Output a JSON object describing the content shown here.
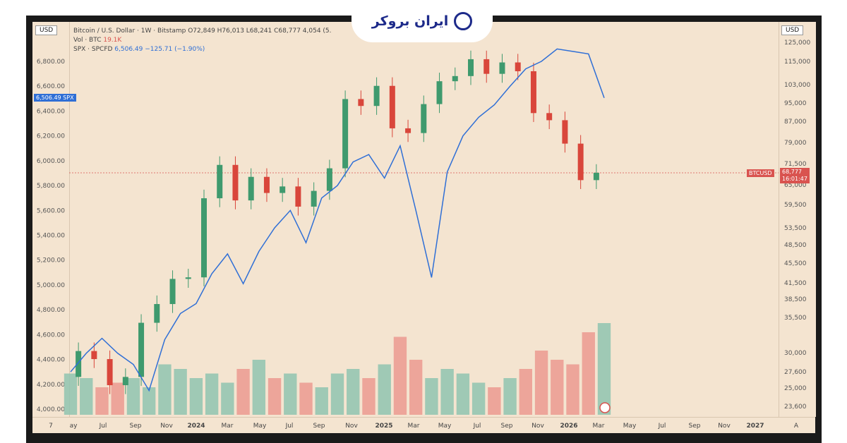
{
  "header": {
    "currency_left": "USD",
    "currency_right": "USD",
    "line1": "Bitcoin / U.S. Dollar · 1W · Bitstamp  O72,849  H76,013  L68,241  C68,777   4,054  (",
    "line2_prefix": "Vol · BTC ",
    "line2_value": "19.1K",
    "line3_prefix": "SPX · SPCFD  ",
    "line3_value": "6,506.49  −125.71 (−1.90%)",
    "truncated": "5.",
    "spx_tag_value": "6,506.49",
    "spx_tag_label": "SPX",
    "btc_tag_label": "BTCUSD",
    "btc_tag_price": "68,777",
    "btc_tag_time": "16:01:47",
    "brand_text": "ایران بروکر"
  },
  "chart_data": {
    "type": "candlestick+line+volume",
    "left_axis_ticks": [
      "6,800.00",
      "6,600.00",
      "6,400.00",
      "6,200.00",
      "6,000.00",
      "5,800.00",
      "5,600.00",
      "5,400.00",
      "5,200.00",
      "5,000.00",
      "4,800.00",
      "4,600.00",
      "4,400.00",
      "4,200.00",
      "4,000.00"
    ],
    "left_axis_values": [
      6800,
      6600,
      6400,
      6200,
      6000,
      5800,
      5600,
      5400,
      5200,
      5000,
      4800,
      4600,
      4400,
      4200,
      4000
    ],
    "right_axis_ticks": [
      "125,000",
      "115,000",
      "103,000",
      "95,000",
      "87,000",
      "79,000",
      "71,500",
      "65,000",
      "59,500",
      "53,500",
      "48,500",
      "45,500",
      "41,500",
      "38,500",
      "35,500",
      "30,000",
      "27,600",
      "25,000",
      "23,600"
    ],
    "x_ticks": [
      "7",
      "ay",
      "Jul",
      "Sep",
      "Nov",
      "2024",
      "Mar",
      "May",
      "Jul",
      "Sep",
      "Nov",
      "2025",
      "Mar",
      "May",
      "Jul",
      "Sep",
      "Nov",
      "2026",
      "Mar",
      "May",
      "Jul",
      "Sep",
      "Nov",
      "2027",
      "A"
    ],
    "spx_series": [
      {
        "t": "2023-05",
        "v": 4300
      },
      {
        "t": "2023-06",
        "v": 4450
      },
      {
        "t": "2023-07",
        "v": 4570
      },
      {
        "t": "2023-08",
        "v": 4450
      },
      {
        "t": "2023-09",
        "v": 4360
      },
      {
        "t": "2023-10",
        "v": 4150
      },
      {
        "t": "2023-11",
        "v": 4560
      },
      {
        "t": "2023-12",
        "v": 4770
      },
      {
        "t": "2024-01",
        "v": 4850
      },
      {
        "t": "2024-02",
        "v": 5090
      },
      {
        "t": "2024-03",
        "v": 5250
      },
      {
        "t": "2024-04",
        "v": 5010
      },
      {
        "t": "2024-05",
        "v": 5270
      },
      {
        "t": "2024-06",
        "v": 5460
      },
      {
        "t": "2024-07",
        "v": 5600
      },
      {
        "t": "2024-08",
        "v": 5340
      },
      {
        "t": "2024-09",
        "v": 5700
      },
      {
        "t": "2024-10",
        "v": 5800
      },
      {
        "t": "2024-11",
        "v": 5990
      },
      {
        "t": "2024-12",
        "v": 6050
      },
      {
        "t": "2025-01",
        "v": 5860
      },
      {
        "t": "2025-02",
        "v": 6120
      },
      {
        "t": "2025-03",
        "v": 5600
      },
      {
        "t": "2025-04",
        "v": 5060
      },
      {
        "t": "2025-05",
        "v": 5910
      },
      {
        "t": "2025-06",
        "v": 6200
      },
      {
        "t": "2025-07",
        "v": 6350
      },
      {
        "t": "2025-08",
        "v": 6450
      },
      {
        "t": "2025-09",
        "v": 6600
      },
      {
        "t": "2025-10",
        "v": 6740
      },
      {
        "t": "2025-11",
        "v": 6800
      },
      {
        "t": "2025-12",
        "v": 6900
      },
      {
        "t": "2026-01",
        "v": 6880
      },
      {
        "t": "2026-02",
        "v": 6860
      },
      {
        "t": "2026-03",
        "v": 6506
      }
    ],
    "btc_series": [
      {
        "t": "2023-05",
        "v": 27000
      },
      {
        "t": "2023-06",
        "v": 30400
      },
      {
        "t": "2023-07",
        "v": 29300
      },
      {
        "t": "2023-08",
        "v": 26000
      },
      {
        "t": "2023-09",
        "v": 27000
      },
      {
        "t": "2023-10",
        "v": 34600
      },
      {
        "t": "2023-11",
        "v": 37700
      },
      {
        "t": "2023-12",
        "v": 42300
      },
      {
        "t": "2024-01",
        "v": 42600
      },
      {
        "t": "2024-02",
        "v": 61200
      },
      {
        "t": "2024-03",
        "v": 71300
      },
      {
        "t": "2024-04",
        "v": 60600
      },
      {
        "t": "2024-05",
        "v": 67500
      },
      {
        "t": "2024-06",
        "v": 62700
      },
      {
        "t": "2024-07",
        "v": 64600
      },
      {
        "t": "2024-08",
        "v": 58900
      },
      {
        "t": "2024-09",
        "v": 63300
      },
      {
        "t": "2024-10",
        "v": 70200
      },
      {
        "t": "2024-11",
        "v": 96400
      },
      {
        "t": "2024-12",
        "v": 93400
      },
      {
        "t": "2025-01",
        "v": 102400
      },
      {
        "t": "2025-02",
        "v": 84300
      },
      {
        "t": "2025-03",
        "v": 82500
      },
      {
        "t": "2025-04",
        "v": 94200
      },
      {
        "t": "2025-05",
        "v": 104600
      },
      {
        "t": "2025-06",
        "v": 107100
      },
      {
        "t": "2025-07",
        "v": 115700
      },
      {
        "t": "2025-08",
        "v": 108200
      },
      {
        "t": "2025-09",
        "v": 114000
      },
      {
        "t": "2025-10",
        "v": 109500
      },
      {
        "t": "2025-11",
        "v": 90400
      },
      {
        "t": "2025-12",
        "v": 87500
      },
      {
        "t": "2026-01",
        "v": 78600
      },
      {
        "t": "2026-02",
        "v": 66500
      },
      {
        "t": "2026-03",
        "v": 68777
      }
    ],
    "volume_relative": [
      0.45,
      0.4,
      0.3,
      0.35,
      0.4,
      0.3,
      0.55,
      0.5,
      0.4,
      0.45,
      0.35,
      0.5,
      0.6,
      0.4,
      0.45,
      0.35,
      0.3,
      0.45,
      0.5,
      0.4,
      0.55,
      0.85,
      0.6,
      0.4,
      0.5,
      0.45,
      0.35,
      0.3,
      0.4,
      0.5,
      0.7,
      0.6,
      0.55,
      0.9,
      1.0
    ]
  }
}
